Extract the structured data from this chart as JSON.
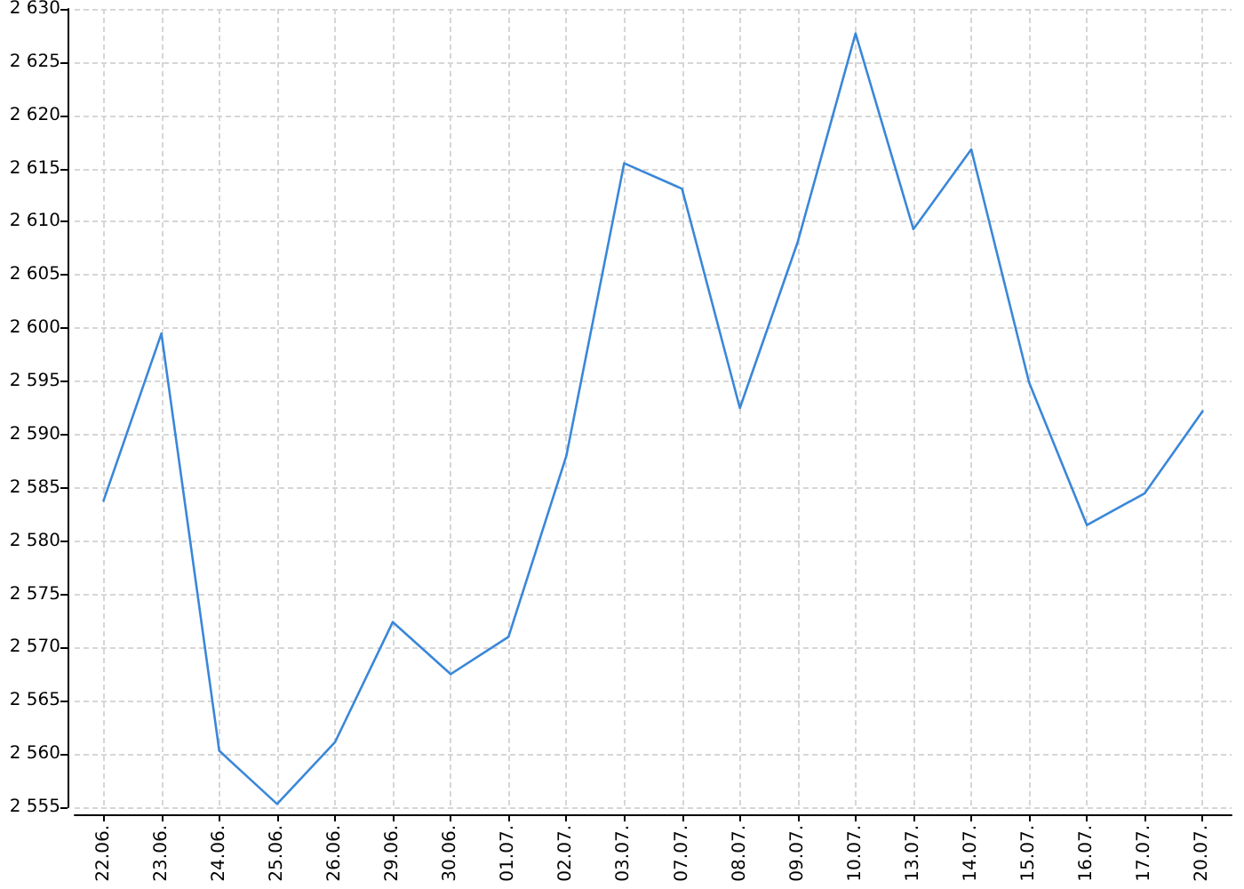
{
  "chart_data": {
    "type": "line",
    "categories": [
      "22.06.",
      "23.06.",
      "24.06.",
      "25.06.",
      "26.06.",
      "29.06.",
      "30.06.",
      "01.07.",
      "02.07.",
      "03.07.",
      "07.07.",
      "08.07.",
      "09.07.",
      "10.07.",
      "13.07.",
      "14.07.",
      "15.07.",
      "16.07.",
      "17.07.",
      "20.07."
    ],
    "series": [
      {
        "color": "#3a87d9",
        "values": [
          2583.8,
          2599.5,
          2560.3,
          2555.3,
          2561.1,
          2572.4,
          2567.5,
          2571.0,
          2588.0,
          2615.5,
          2613.1,
          2592.5,
          2608.1,
          2627.7,
          2609.3,
          2616.8,
          2594.9,
          2581.5,
          2584.5,
          2592.2
        ]
      }
    ],
    "ylim": [
      2555,
      2630
    ],
    "yticks": [
      {
        "value": 2555,
        "label": "2 555"
      },
      {
        "value": 2560,
        "label": "2 560"
      },
      {
        "value": 2565,
        "label": "2 565"
      },
      {
        "value": 2570,
        "label": "2 570"
      },
      {
        "value": 2575,
        "label": "2 575"
      },
      {
        "value": 2580,
        "label": "2 580"
      },
      {
        "value": 2585,
        "label": "2 585"
      },
      {
        "value": 2590,
        "label": "2 590"
      },
      {
        "value": 2595,
        "label": "2 595"
      },
      {
        "value": 2600,
        "label": "2 600"
      },
      {
        "value": 2605,
        "label": "2 605"
      },
      {
        "value": 2610,
        "label": "2 610"
      },
      {
        "value": 2615,
        "label": "2 615"
      },
      {
        "value": 2620,
        "label": "2 620"
      },
      {
        "value": 2625,
        "label": "2 625"
      },
      {
        "value": 2630,
        "label": "2 630"
      }
    ],
    "grid": true,
    "marker": "none",
    "line_style": "solid"
  }
}
